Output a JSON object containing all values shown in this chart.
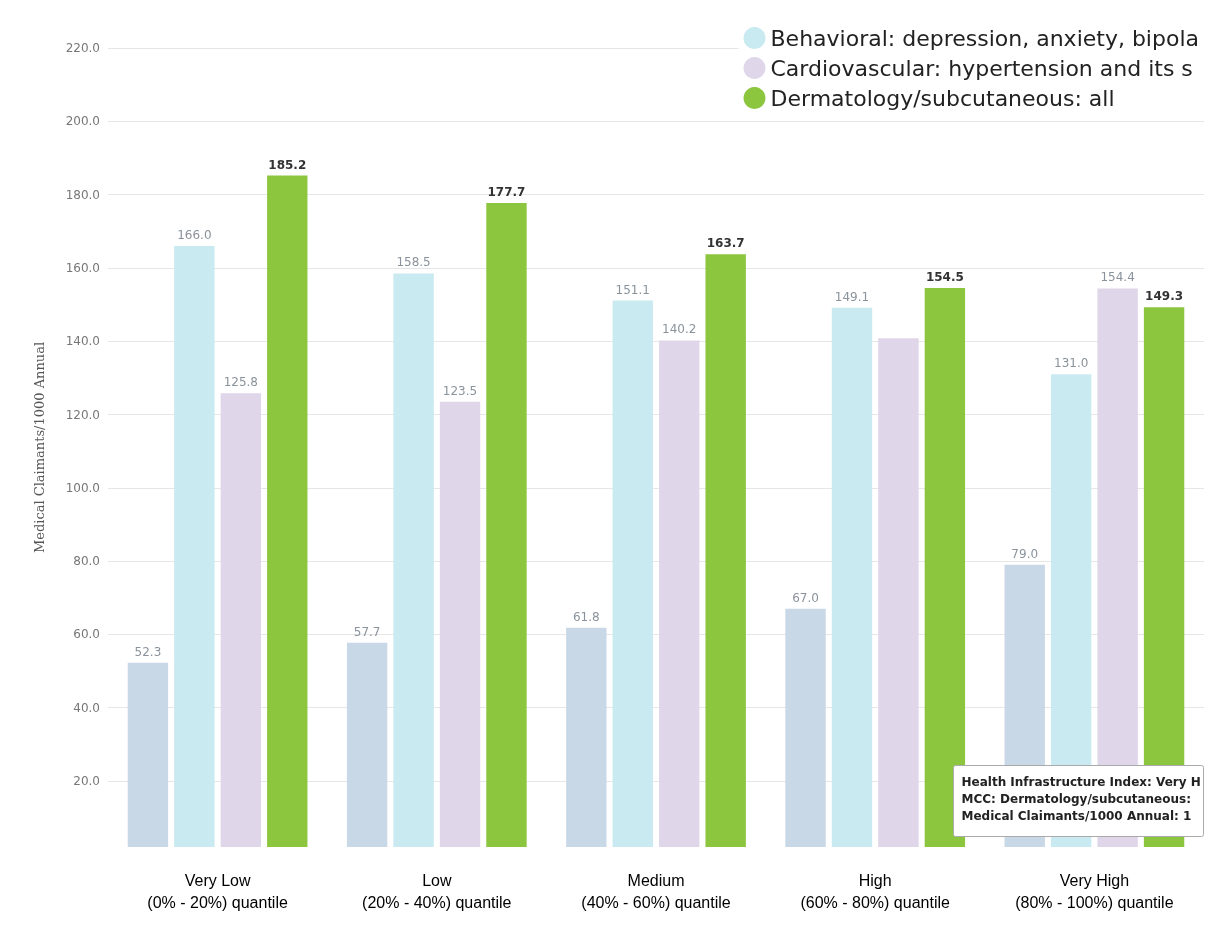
{
  "chart_data": {
    "type": "bar",
    "ylabel": "Medical Claimants/1000 Annual",
    "categories": [
      "Very Low\n(0% - 20%) quantile",
      "Low\n(20% - 40%) quantile",
      "Medium\n(40% - 60%) quantile",
      "High\n(60% - 80%) quantile",
      "Very High\n(80% - 100%) quantile"
    ],
    "series": [
      {
        "color": "#c9d8e7",
        "values": [
          52.3,
          57.7,
          61.8,
          67.0,
          79.0
        ],
        "value_labels": [
          "52.3",
          "57.7",
          "61.8",
          "67.0",
          "79.0"
        ]
      },
      {
        "name": "Behavioral: depression, anxiety, bipola",
        "color": "#c8eaf0",
        "values": [
          166.0,
          158.5,
          151.1,
          149.1,
          131.0
        ],
        "value_labels": [
          "166.0",
          "158.5",
          "151.1",
          "149.1",
          "131.0"
        ]
      },
      {
        "name": "Cardiovascular: hypertension and its s",
        "color": "#e0d6e9",
        "values": [
          125.8,
          123.5,
          140.2,
          140.8,
          154.4
        ],
        "value_labels": [
          "125.8",
          "123.5",
          "140.2",
          null,
          "154.4"
        ]
      },
      {
        "name": "Dermatology/subcutaneous: all",
        "color": "#8cc63f",
        "values": [
          185.2,
          177.7,
          163.7,
          154.5,
          149.3
        ],
        "value_labels": [
          "185.2",
          "177.7",
          "163.7",
          "154.5",
          "149.3"
        ]
      }
    ],
    "ylim": [
      2,
      220
    ],
    "yticks": [
      {
        "value": 20,
        "label": "20.0"
      },
      {
        "value": 40,
        "label": "40.0"
      },
      {
        "value": 60,
        "label": "60.0"
      },
      {
        "value": 80,
        "label": "80.0"
      },
      {
        "value": 100,
        "label": "100.0"
      },
      {
        "value": 120,
        "label": "120.0"
      },
      {
        "value": 140,
        "label": "140.0"
      },
      {
        "value": 160,
        "label": "160.0"
      },
      {
        "value": 180,
        "label": "180.0"
      },
      {
        "value": 200,
        "label": "200.0"
      },
      {
        "value": 220,
        "label": "220.0"
      }
    ],
    "grid": "y",
    "legend": "top right",
    "annotations": [
      "Health Infrastructure Index: Very H",
      "MCC: Dermatology/subcutaneous:",
      "Medical Claimants/1000 Annual: 1"
    ]
  }
}
